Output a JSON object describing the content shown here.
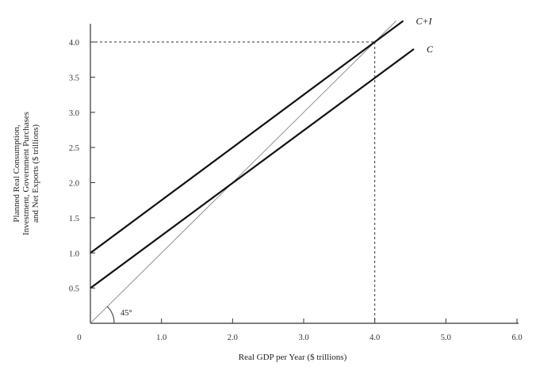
{
  "chart_data": {
    "type": "line",
    "title": "",
    "xlabel": "Real GDP per Year ($ trillions)",
    "ylabel_lines": [
      "Planned Real Consumption,",
      "Investment, Government Purchases",
      "and Net Exports ($ trillions)"
    ],
    "xlim": [
      0,
      6.0
    ],
    "ylim": [
      0,
      4.0
    ],
    "origin_label": "0",
    "x_ticks": [
      {
        "value": 1.0,
        "label": "1.0"
      },
      {
        "value": 2.0,
        "label": "2.0"
      },
      {
        "value": 3.0,
        "label": "3.0"
      },
      {
        "value": 4.0,
        "label": "4.0"
      },
      {
        "value": 5.0,
        "label": "5.0"
      },
      {
        "value": 6.0,
        "label": "6.0"
      }
    ],
    "y_ticks": [
      {
        "value": 0.5,
        "label": "0.5"
      },
      {
        "value": 1.0,
        "label": "1.0"
      },
      {
        "value": 1.5,
        "label": "1.5"
      },
      {
        "value": 2.0,
        "label": "2.0"
      },
      {
        "value": 2.5,
        "label": "2.5"
      },
      {
        "value": 3.0,
        "label": "3.0"
      },
      {
        "value": 3.5,
        "label": "3.5"
      },
      {
        "value": 4.0,
        "label": "4.0"
      }
    ],
    "series": [
      {
        "name": "C+I",
        "x": [
          0,
          4.4
        ],
        "y": [
          1.0,
          4.3
        ],
        "color": "#111111"
      },
      {
        "name": "C",
        "x": [
          0,
          4.55
        ],
        "y": [
          0.5,
          3.9
        ],
        "color": "#111111"
      }
    ],
    "reference_line": {
      "label": "45°",
      "x": [
        0,
        4.3
      ],
      "y": [
        0,
        4.3
      ],
      "color": "#888888"
    },
    "equilibrium_guides": {
      "x": 4.0,
      "y": 4.0
    },
    "grid": false
  }
}
